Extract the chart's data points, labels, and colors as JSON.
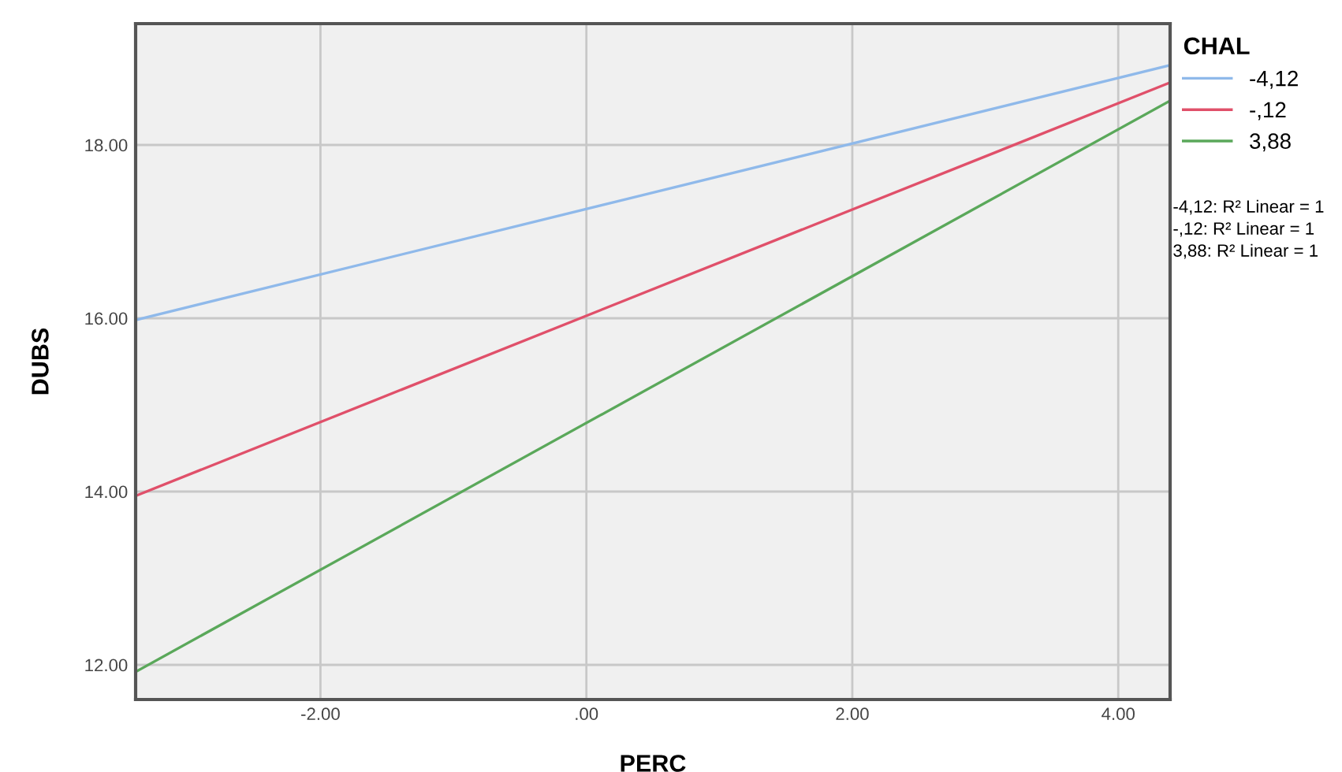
{
  "chart_data": {
    "type": "line",
    "xlabel": "PERC",
    "ylabel": "DUBS",
    "legend_title": "CHAL",
    "x": [
      -3.39,
      4.39
    ],
    "series": [
      {
        "name": "-4,12",
        "color": "#8fb9ea",
        "values": [
          15.98,
          18.92
        ]
      },
      {
        "name": "-,12",
        "color": "#e0506a",
        "values": [
          13.95,
          18.72
        ]
      },
      {
        "name": "3,88",
        "color": "#5aa85a",
        "values": [
          11.92,
          18.51
        ]
      }
    ],
    "xlim": [
      -3.39,
      4.39
    ],
    "ylim": [
      11.6,
      19.4
    ],
    "xticks": [
      {
        "value": -2,
        "label": "-2.00"
      },
      {
        "value": 0,
        "label": ".00"
      },
      {
        "value": 2,
        "label": "2.00"
      },
      {
        "value": 4,
        "label": "4.00"
      }
    ],
    "yticks": [
      {
        "value": 12,
        "label": "12.00"
      },
      {
        "value": 14,
        "label": "14.00"
      },
      {
        "value": 16,
        "label": "16.00"
      },
      {
        "value": 18,
        "label": "18.00"
      }
    ],
    "annotations": [
      "-4,12: R² Linear = 1",
      "-,12: R² Linear = 1",
      "3,88: R² Linear = 1"
    ],
    "grid": true,
    "legend": "top right",
    "marker": "none",
    "line_style": "solid"
  }
}
